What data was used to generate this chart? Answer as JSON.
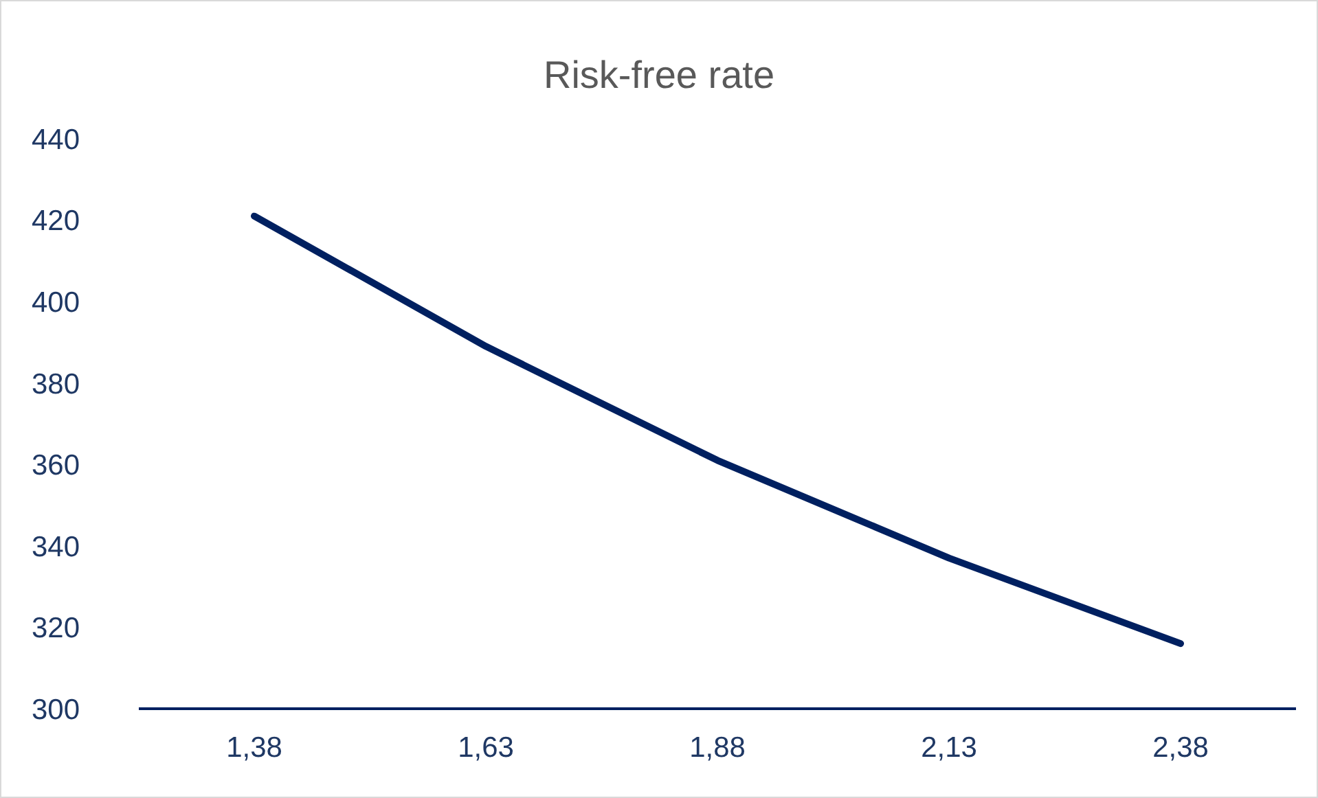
{
  "chart_data": {
    "type": "line",
    "title": "Risk-free rate",
    "categories": [
      "1,38",
      "1,63",
      "1,88",
      "2,13",
      "2,38"
    ],
    "series": [
      {
        "color": "#002060",
        "values": [
          421,
          389,
          361,
          337,
          316
        ]
      }
    ],
    "ylim": [
      300,
      440
    ],
    "yticks": [
      300,
      320,
      340,
      360,
      380,
      400,
      420,
      440
    ],
    "grid": false,
    "legend": false,
    "marker": "none",
    "line_style": "solid"
  }
}
